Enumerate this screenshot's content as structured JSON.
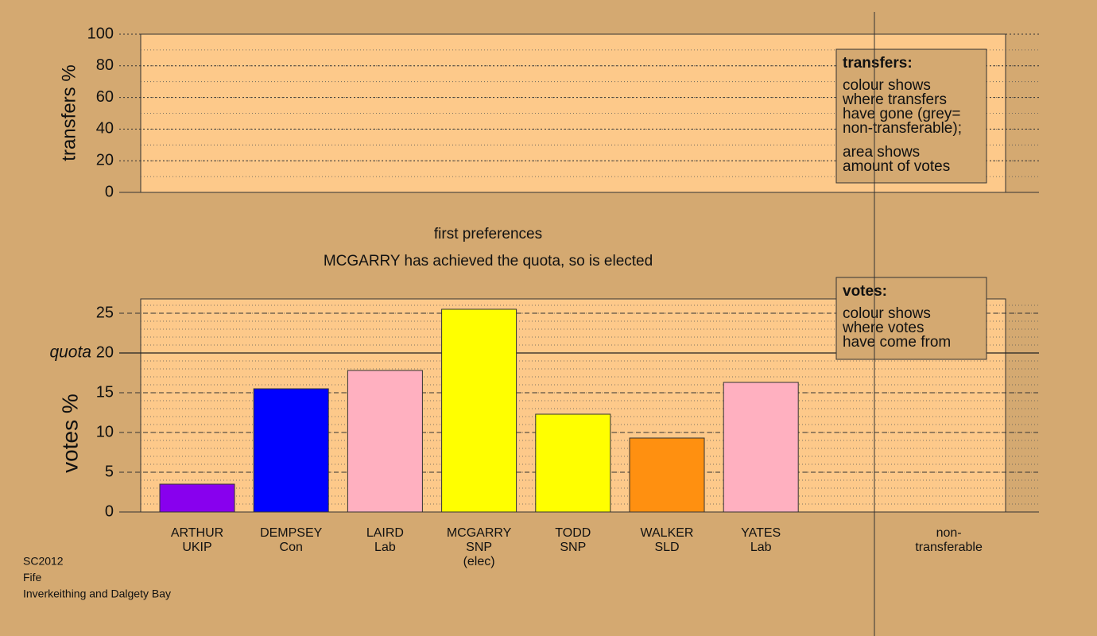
{
  "chart_data": [
    {
      "type": "bar",
      "ylabel": "transfers %",
      "ylim": [
        0,
        100
      ],
      "yticks": [
        0,
        20,
        40,
        60,
        80,
        100
      ],
      "minor_grid_step": 10,
      "grid_style": "dotted",
      "legend": {
        "title": "transfers:",
        "paragraphs": [
          [
            "colour shows",
            "where transfers",
            "have gone (grey=",
            "non-transferable);"
          ],
          [
            "area shows",
            "amount of votes"
          ]
        ]
      }
    },
    {
      "type": "bar",
      "title": "first preferences",
      "subtitle": "MCGARRY has achieved the quota, so is elected",
      "ylabel": "votes %",
      "ylim": [
        0,
        26.8
      ],
      "yticks": [
        0,
        5,
        10,
        15,
        20,
        25
      ],
      "minor_grid_step": 1,
      "grid_style": "dashed",
      "quota": {
        "value": 20,
        "label": "quota"
      },
      "categories": [
        [
          "ARTHUR",
          "UKIP"
        ],
        [
          "DEMPSEY",
          "Con"
        ],
        [
          "LAIRD",
          "Lab"
        ],
        [
          "MCGARRY",
          "SNP",
          "(elec)"
        ],
        [
          "TODD",
          "SNP"
        ],
        [
          "WALKER",
          "SLD"
        ],
        [
          "YATES",
          "Lab"
        ]
      ],
      "values": [
        3.5,
        15.5,
        17.8,
        25.5,
        12.3,
        9.3,
        16.3
      ],
      "colors": [
        "#8800ee",
        "#0000ff",
        "#ffb0c0",
        "#ffff00",
        "#ffff00",
        "#ff9010",
        "#ffb0c0"
      ],
      "nontransferable": [
        "non-",
        "transferable"
      ],
      "legend": {
        "title": "votes:",
        "paragraphs": [
          [
            "colour shows",
            "where votes",
            "have come from"
          ]
        ]
      }
    }
  ],
  "footer": [
    "SC2012",
    "Fife",
    "Inverkeithing and Dalgety Bay"
  ]
}
